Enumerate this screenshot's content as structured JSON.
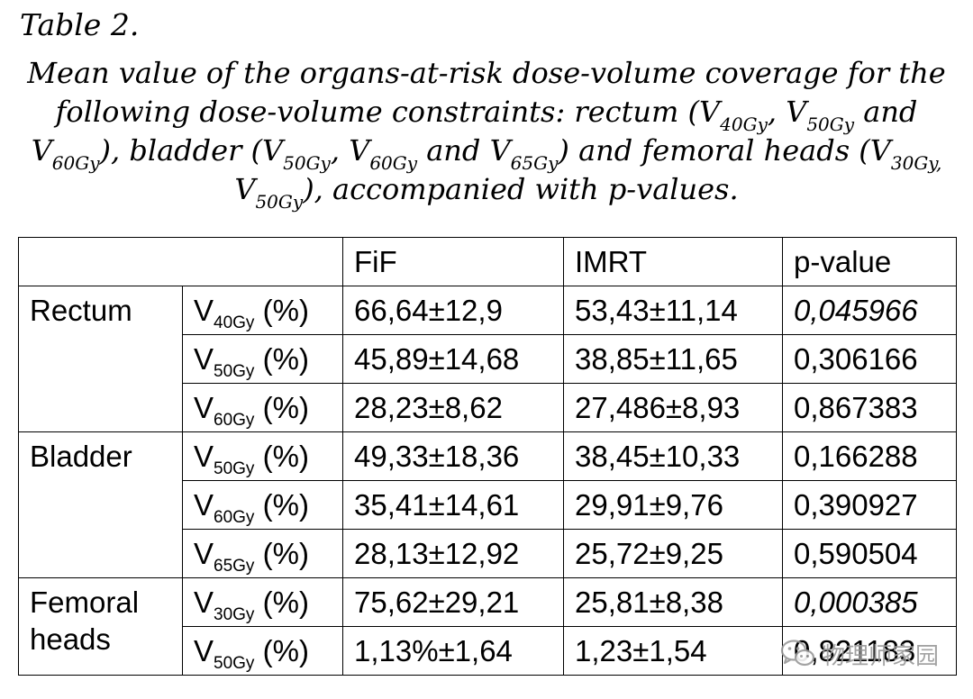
{
  "table_label": "Table 2.",
  "caption": {
    "p1": "Mean value of the organs-at-risk dose-volume coverage for the following dose-volume constraints: rectum (V",
    "s1": "40Gy",
    "p2": ", V",
    "s2": "50Gy",
    "p3": " and V",
    "s3": "60Gy",
    "p4": "), bladder (V",
    "s4": "50Gy",
    "p5": ", V",
    "s5": "60Gy",
    "p6": " and V",
    "s6": "65Gy",
    "p7": ") and femoral heads (V",
    "s7": "30Gy,",
    "p8": " V",
    "s8": "50Gy",
    "p9": "), accompanied with p-values."
  },
  "table": {
    "headers": [
      "",
      "FiF",
      "IMRT",
      "p-value"
    ],
    "groups": [
      {
        "organ": "Rectum",
        "rows": [
          {
            "metric": "V",
            "sub": "40Gy",
            "unit": " (%)",
            "fif": "66,64±12,9",
            "imrt": "53,43±11,14",
            "p": "0,045966"
          },
          {
            "metric": "V",
            "sub": "50Gy",
            "unit": " (%)",
            "fif": "45,89±14,68",
            "imrt": "38,85±11,65",
            "p": "0,306166"
          },
          {
            "metric": "V",
            "sub": "60Gy",
            "unit": " (%)",
            "fif": "28,23±8,62",
            "imrt": "27,486±8,93",
            "p": "0,867383"
          }
        ]
      },
      {
        "organ": "Bladder",
        "rows": [
          {
            "metric": "V",
            "sub": "50Gy",
            "unit": " (%)",
            "fif": "49,33±18,36",
            "imrt": "38,45±10,33",
            "p": "0,166288"
          },
          {
            "metric": "V",
            "sub": "60Gy",
            "unit": " (%)",
            "fif": "35,41±14,61",
            "imrt": "29,91±9,76",
            "p": "0,390927"
          },
          {
            "metric": "V",
            "sub": "65Gy",
            "unit": " (%)",
            "fif": "28,13±12,92",
            "imrt": "25,72±9,25",
            "p": "0,590504"
          }
        ]
      },
      {
        "organ_line1": "Femoral",
        "organ_line2": "heads",
        "rows": [
          {
            "metric": "V",
            "sub": "30Gy",
            "unit": " (%)",
            "fif": "75,62±29,21",
            "imrt": "25,81±8,38",
            "p": "0,000385"
          },
          {
            "metric": "V",
            "sub": "50Gy",
            "unit": " (%)",
            "fif": "1,13%±1,64",
            "imrt": "1,23±1,54",
            "p": "0,821183"
          }
        ]
      }
    ]
  },
  "watermark": {
    "text": "物理师家园",
    "icon": "wechat-icon"
  }
}
